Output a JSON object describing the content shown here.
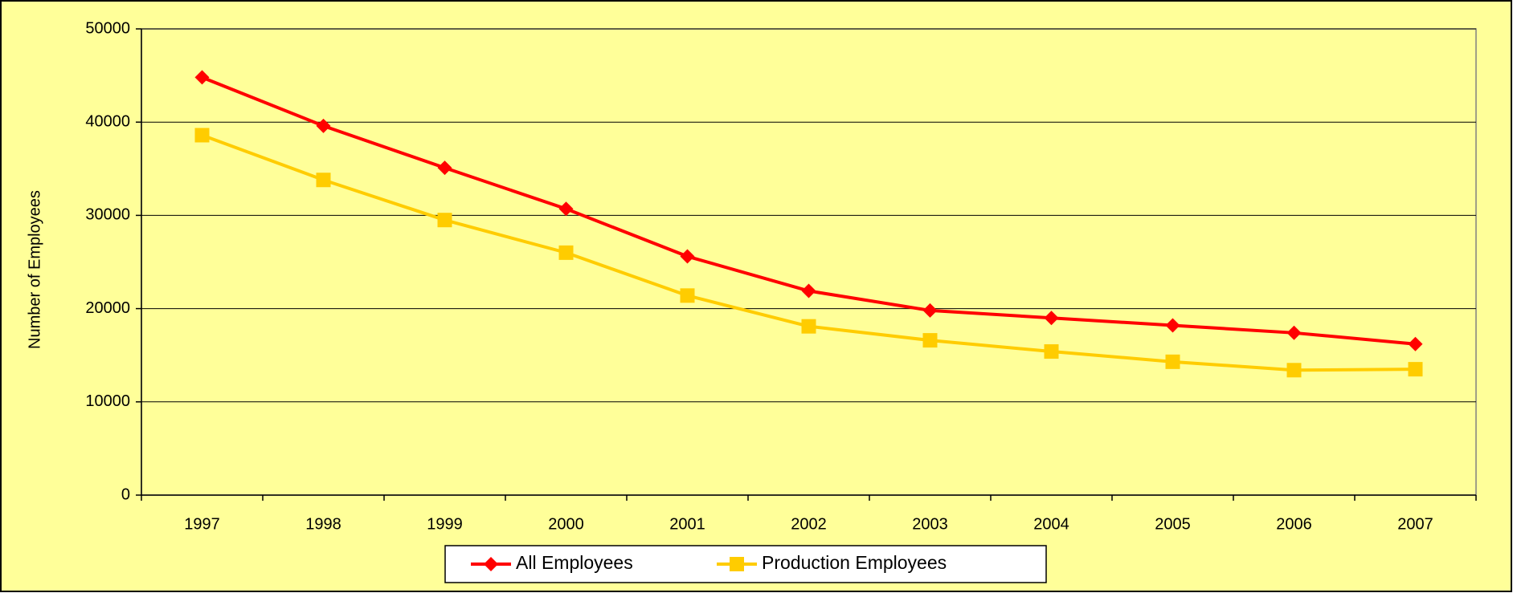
{
  "chart_data": {
    "type": "line",
    "y_label": "Number of Employees",
    "categories": [
      "1997",
      "1998",
      "1999",
      "2000",
      "2001",
      "2002",
      "2003",
      "2004",
      "2005",
      "2006",
      "2007"
    ],
    "series": [
      {
        "name": "All Employees",
        "color": "#ff0000",
        "marker": "diamond",
        "values": [
          44800,
          39600,
          35100,
          30700,
          25600,
          21900,
          19800,
          19000,
          18200,
          17400,
          16200
        ]
      },
      {
        "name": "Production Employees",
        "color": "#ffcc00",
        "marker": "square",
        "values": [
          38600,
          33800,
          29500,
          26000,
          21400,
          18100,
          16600,
          15400,
          14300,
          13400,
          13500
        ]
      }
    ],
    "ylim": [
      0,
      50000
    ],
    "yticks": [
      0,
      10000,
      20000,
      30000,
      40000,
      50000
    ],
    "grid": true,
    "legend": "bottom",
    "background": "#ffff99"
  }
}
